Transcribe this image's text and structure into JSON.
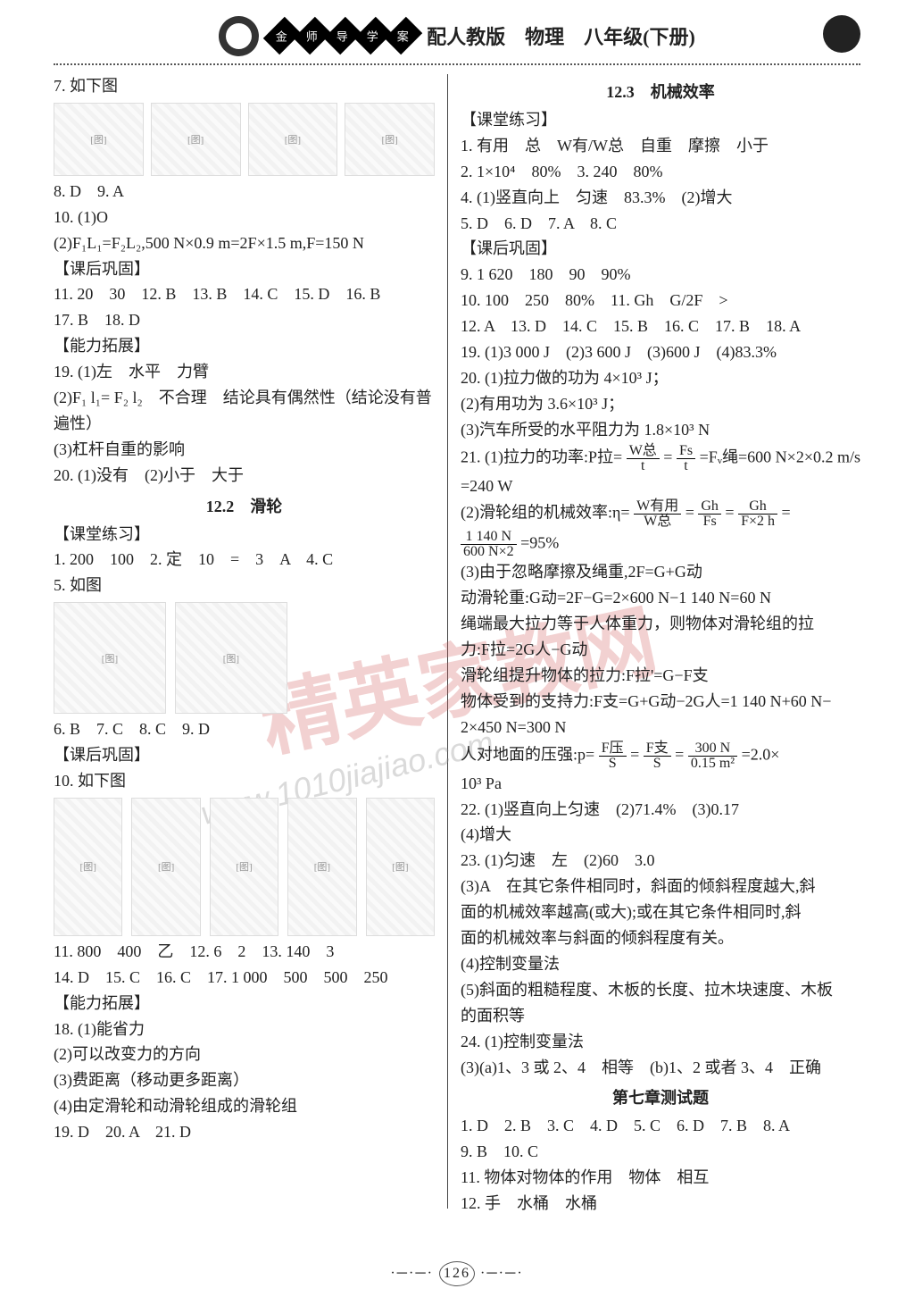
{
  "header": {
    "emblems": [
      "金",
      "师",
      "导",
      "学",
      "案"
    ],
    "title": "配人教版　物理　八年级(下册)"
  },
  "colL": {
    "q7": "7. 如下图",
    "l1": "8. D　9. A",
    "l2": "10. (1)O",
    "l3": "(2)F₁L₁=F₂L₂,500 N×0.9 m=2F×1.5 m,F=150 N",
    "h1": "【课后巩固】",
    "l4": "11. 20　30　12. B　13. B　14. C　15. D　16. B",
    "l5": "17. B　18. D",
    "h2": "【能力拓展】",
    "l6": "19. (1)左　水平　力臂",
    "l7": "(2)F₁ l₁= F₂ l₂　不合理　结论具有偶然性（结论没有普",
    "l7b": "遍性）",
    "l8": "(3)杠杆自重的影响",
    "l9": "20. (1)没有　(2)小于　大于",
    "s2": "12.2　滑轮",
    "h3": "【课堂练习】",
    "l10": "1. 200　100　2. 定　10　=　3　A　4. C",
    "l11": "5. 如图",
    "l12": "6. B　7. C　8. C　9. D",
    "h4": "【课后巩固】",
    "l13": "10. 如下图",
    "l14": "11. 800　400　乙　12. 6　2　13. 140　3",
    "l15": "14. D　15. C　16. C　17. 1 000　500　500　250",
    "h5": "【能力拓展】",
    "l16": "18. (1)能省力",
    "l17": "(2)可以改变力的方向",
    "l18": "(3)费距离（移动更多距离）",
    "l19": "(4)由定滑轮和动滑轮组成的滑轮组",
    "l20": "19. D　20. A　21. D"
  },
  "colR": {
    "s3": "12.3　机械效率",
    "h1": "【课堂练习】",
    "l1": "1. 有用　总　W有/W总　自重　摩擦　小于",
    "l2": "2. 1×10⁴　80%　3. 240　80%",
    "l3": "4. (1)竖直向上　匀速　83.3%　(2)增大",
    "l4": "5. D　6. D　7. A　8. C",
    "h2": "【课后巩固】",
    "l5": "9. 1 620　180　90　90%",
    "l6": "10. 100　250　80%　11. Gh　G/2F　>",
    "l7": "12. A　13. D　14. C　15. B　16. C　17. B　18. A",
    "l8": "19. (1)3 000 J　(2)3 600 J　(3)600 J　(4)83.3%",
    "l9": "20. (1)拉力做的功为 4×10³ J；",
    "l10": "(2)有用功为 3.6×10³ J；",
    "l11": "(3)汽车所受的水平阻力为 1.8×10³ N",
    "q21a": "21. (1)拉力的功率:P拉=",
    "q21a_f1n": "W总",
    "q21a_f1d": "t",
    "q21a_m": "=",
    "q21a_f2n": "Fs",
    "q21a_f2d": "t",
    "q21a_end": "=Fᵥ绳=600 N×2×0.2 m/s",
    "l12": "=240 W",
    "q21b": "(2)滑轮组的机械效率:η=",
    "q21b_f1n": "W有用",
    "q21b_f1d": "W总",
    "q21b_m1": "=",
    "q21b_f2n": "Gh",
    "q21b_f2d": "Fs",
    "q21b_m2": "=",
    "q21b_f3n": "Gh",
    "q21b_f3d": "F×2 h",
    "q21b_e": "=",
    "q21c_f1n": "1 140 N",
    "q21c_f1d": "600 N×2",
    "q21c_e": "=95%",
    "l13": "(3)由于忽略摩擦及绳重,2F=G+G动",
    "l14": "动滑轮重:G动=2F−G=2×600 N−1 140 N=60 N",
    "l15": "绳端最大拉力等于人体重力，则物体对滑轮组的拉",
    "l16": "力:F拉=2G人−G动",
    "l17": "滑轮组提升物体的拉力:F拉'=G−F支",
    "l18": "物体受到的支持力:F支=G+G动−2G人=1 140 N+60 N−",
    "l19": "2×450 N=300 N",
    "q_press": "人对地面的压强:p=",
    "qp_f1n": "F压",
    "qp_f1d": "S",
    "qp_m1": "=",
    "qp_f2n": "F支",
    "qp_f2d": "S",
    "qp_m2": "=",
    "qp_f3n": "300 N",
    "qp_f3d": "0.15 m²",
    "qp_e": "=2.0×",
    "l20": "10³ Pa",
    "l21": "22. (1)竖直向上匀速　(2)71.4%　(3)0.17",
    "l22": "(4)增大",
    "l23": "23. (1)匀速　左　(2)60　3.0",
    "l24": "(3)A　在其它条件相同时，斜面的倾斜程度越大,斜",
    "l25": "面的机械效率越高(或大);或在其它条件相同时,斜",
    "l26": "面的机械效率与斜面的倾斜程度有关。",
    "l27": "(4)控制变量法",
    "l28": "(5)斜面的粗糙程度、木板的长度、拉木块速度、木板",
    "l29": "的面积等",
    "l30": "24. (1)控制变量法",
    "l31": "(3)(a)1、3 或 2、4　相等　(b)1、2 或者 3、4　正确",
    "s4": "第七章测试题",
    "l32": "1. D　2. B　3. C　4. D　5. C　6. D　7. B　8. A",
    "l33": "9. B　10. C",
    "l34": "11. 物体对物体的作用　物体　相互",
    "l35": "12. 手　水桶　水桶"
  },
  "footer": {
    "deco": "·─·─·",
    "page": "126"
  },
  "watermark": {
    "text1": "精英家教网",
    "text2": "www.1010jiajiao.com"
  },
  "figs": {
    "label": "[图]"
  }
}
